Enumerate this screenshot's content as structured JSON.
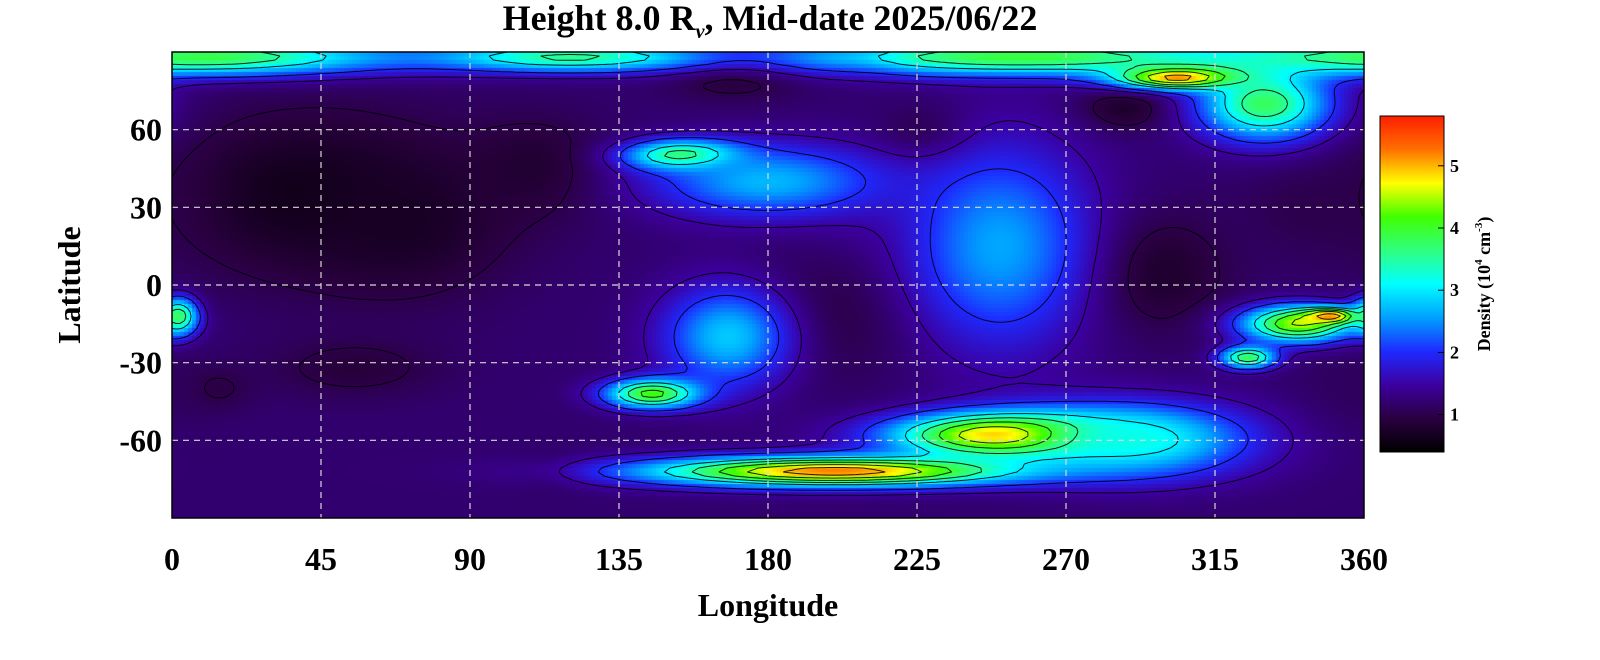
{
  "chart_data": {
    "type": "heatmap",
    "title": {
      "prefix": "Height 8.0 R",
      "subscript": "ν",
      "suffix": ", Mid-date 2025/06/22"
    },
    "xlabel": "Longitude",
    "ylabel": "Latitude",
    "xlim": [
      0,
      360
    ],
    "ylim": [
      -90,
      90
    ],
    "x_ticks": [
      0,
      45,
      90,
      135,
      180,
      225,
      270,
      315,
      360
    ],
    "y_ticks": [
      60,
      30,
      0,
      -30,
      -60
    ],
    "grid": true,
    "colorbar": {
      "position": "right",
      "label": {
        "prefix": "Density (10",
        "exp1": "4",
        "mid": " cm",
        "exp2": "-3",
        "suffix": ")"
      },
      "range": [
        0.4,
        5.8
      ],
      "ticks": [
        1,
        2,
        3,
        4,
        5
      ],
      "colormap": [
        "#000000",
        "#2a0040",
        "#3c00a0",
        "#1e2aff",
        "#00a0ff",
        "#00ffff",
        "#30ff80",
        "#40ff00",
        "#ffff00",
        "#ff7000",
        "#ff1e00"
      ]
    },
    "background_value": 1.2,
    "features": [
      {
        "lon": 40,
        "lat": 35,
        "value": 0.6,
        "spread_lon": 28,
        "spread_lat": 22
      },
      {
        "lon": 70,
        "lat": 25,
        "value": 0.7,
        "spread_lon": 22,
        "spread_lat": 20
      },
      {
        "lon": 110,
        "lat": 45,
        "value": 0.8,
        "spread_lon": 16,
        "spread_lat": 14
      },
      {
        "lon": 55,
        "lat": -32,
        "value": 0.9,
        "spread_lon": 18,
        "spread_lat": 8
      },
      {
        "lon": 12,
        "lat": -40,
        "value": 0.9,
        "spread_lon": 8,
        "spread_lat": 6
      },
      {
        "lon": 170,
        "lat": 83,
        "value": 0.7,
        "spread_lon": 14,
        "spread_lat": 7
      },
      {
        "lon": 212,
        "lat": 88,
        "value": 0.6,
        "spread_lon": 8,
        "spread_lat": 4
      },
      {
        "lon": 228,
        "lat": 58,
        "value": 0.8,
        "spread_lon": 10,
        "spread_lat": 8
      },
      {
        "lon": 200,
        "lat": -12,
        "value": 0.9,
        "spread_lon": 20,
        "spread_lat": 18
      },
      {
        "lon": 205,
        "lat": 25,
        "value": 1.2,
        "spread_lon": 12,
        "spread_lat": 9
      },
      {
        "lon": 295,
        "lat": 5,
        "value": 0.7,
        "spread_lon": 16,
        "spread_lat": 16
      },
      {
        "lon": 288,
        "lat": 68,
        "value": 0.7,
        "spread_lon": 10,
        "spread_lat": 6
      },
      {
        "lon": 345,
        "lat": 30,
        "value": 1.0,
        "spread_lon": 15,
        "spread_lat": 12
      },
      {
        "lon": 355,
        "lat": -42,
        "value": 1.1,
        "spread_lon": 12,
        "spread_lat": 14
      },
      {
        "lon": 115,
        "lat": -72,
        "value": 1.0,
        "spread_lon": 8,
        "spread_lat": 5
      },
      {
        "lon": 10,
        "lat": 88,
        "value": 3.9,
        "spread_lon": 40,
        "spread_lat": 5
      },
      {
        "lon": 120,
        "lat": 88,
        "value": 3.6,
        "spread_lon": 30,
        "spread_lat": 4
      },
      {
        "lon": 255,
        "lat": 88,
        "value": 4.0,
        "spread_lon": 50,
        "spread_lat": 5
      },
      {
        "lon": 305,
        "lat": 80,
        "value": 5.4,
        "spread_lon": 14,
        "spread_lat": 3
      },
      {
        "lon": 330,
        "lat": 70,
        "value": 3.8,
        "spread_lon": 14,
        "spread_lat": 10
      },
      {
        "lon": 155,
        "lat": 50,
        "value": 4.2,
        "spread_lon": 12,
        "spread_lat": 4
      },
      {
        "lon": 180,
        "lat": 40,
        "value": 2.7,
        "spread_lon": 25,
        "spread_lat": 10
      },
      {
        "lon": 250,
        "lat": 15,
        "value": 2.6,
        "spread_lon": 20,
        "spread_lat": 28
      },
      {
        "lon": 168,
        "lat": -20,
        "value": 2.8,
        "spread_lon": 14,
        "spread_lat": 14
      },
      {
        "lon": 145,
        "lat": -42,
        "value": 4.2,
        "spread_lon": 10,
        "spread_lat": 4
      },
      {
        "lon": 200,
        "lat": -72,
        "value": 5.3,
        "spread_lon": 40,
        "spread_lat": 4
      },
      {
        "lon": 255,
        "lat": -58,
        "value": 5.6,
        "spread_lon": 25,
        "spread_lat": 6
      },
      {
        "lon": 290,
        "lat": -60,
        "value": 3.2,
        "spread_lon": 25,
        "spread_lat": 10
      },
      {
        "lon": 340,
        "lat": -15,
        "value": 4.5,
        "spread_lon": 12,
        "spread_lat": 5
      },
      {
        "lon": 350,
        "lat": -12,
        "value": 5.4,
        "spread_lon": 6,
        "spread_lat": 2
      },
      {
        "lon": 325,
        "lat": -28,
        "value": 3.9,
        "spread_lon": 6,
        "spread_lat": 3
      },
      {
        "lon": 2,
        "lat": -12,
        "value": 3.8,
        "spread_lon": 4,
        "spread_lat": 5
      }
    ]
  }
}
